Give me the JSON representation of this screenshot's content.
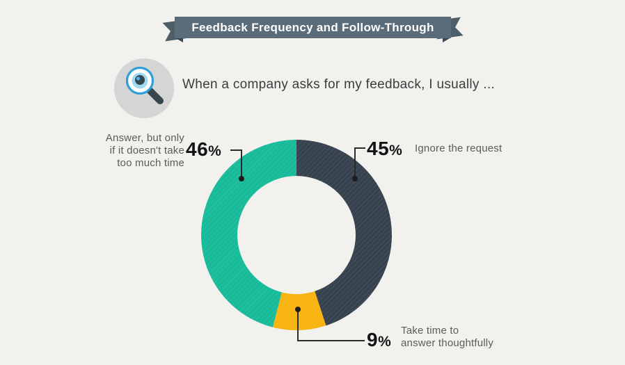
{
  "background": "#f2f1ee",
  "ribbon": {
    "title": "Feedback Frequency and Follow-Through",
    "band_color": "#5a6c79",
    "wing_color": "#4d5e69",
    "text_color": "#ffffff"
  },
  "question": {
    "icon": "magnifier-eye-icon",
    "text": "When a company asks for my feedback, I usually ..."
  },
  "chart_data": {
    "type": "pie",
    "donut": true,
    "title": "When a company asks for my feedback, I usually ...",
    "start_angle_deg": 0,
    "clockwise": true,
    "inner_radius_ratio": 0.62,
    "legend": "none",
    "labels_as_callouts": true,
    "slices": [
      {
        "label": "Ignore the request",
        "value": 45,
        "color": "#36424e"
      },
      {
        "label": "Take time to answer thoughtfully",
        "value": 9,
        "color": "#f7b30e"
      },
      {
        "label": "Answer, but only if it doesn't take too much time",
        "value": 46,
        "color": "#18bb99"
      }
    ]
  },
  "callouts": [
    {
      "num": "46",
      "sign": "%",
      "text": "Answer, but only\nif it doesn't take\ntoo much time"
    },
    {
      "num": "45",
      "sign": "%",
      "text": "Ignore the request"
    },
    {
      "num": "9",
      "sign": "%",
      "text": "Take time to\nanswer thoughtfully"
    }
  ]
}
